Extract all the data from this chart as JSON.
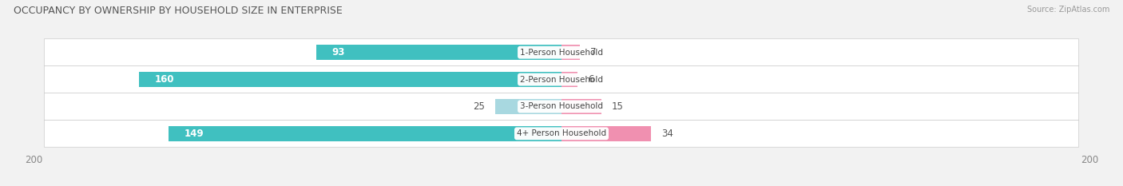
{
  "title": "OCCUPANCY BY OWNERSHIP BY HOUSEHOLD SIZE IN ENTERPRISE",
  "source": "Source: ZipAtlas.com",
  "categories": [
    "1-Person Household",
    "2-Person Household",
    "3-Person Household",
    "4+ Person Household"
  ],
  "owner_values": [
    93,
    160,
    25,
    149
  ],
  "renter_values": [
    7,
    6,
    15,
    34
  ],
  "owner_colors": [
    "#40c0c0",
    "#40c0c0",
    "#a8d8e0",
    "#40c0c0"
  ],
  "renter_color": "#f090b0",
  "axis_max": 200,
  "bg_color": "#f2f2f2",
  "row_bg_color": "#e4e4e4",
  "title_fontsize": 9,
  "tick_fontsize": 8.5,
  "legend_fontsize": 8.5,
  "category_fontsize": 7.5,
  "value_fontsize": 8.5
}
